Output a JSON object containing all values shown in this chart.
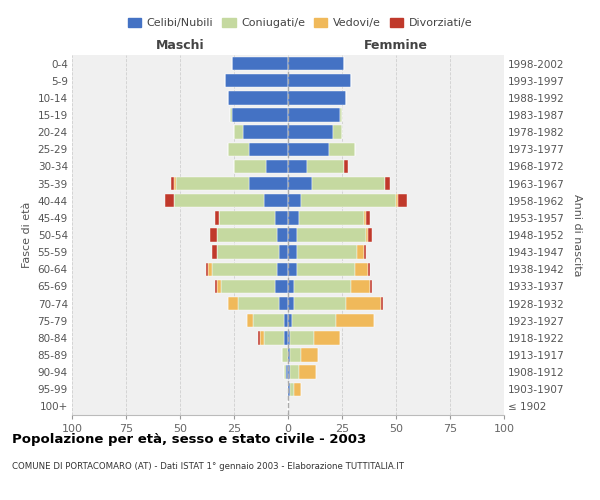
{
  "age_groups": [
    "100+",
    "95-99",
    "90-94",
    "85-89",
    "80-84",
    "75-79",
    "70-74",
    "65-69",
    "60-64",
    "55-59",
    "50-54",
    "45-49",
    "40-44",
    "35-39",
    "30-34",
    "25-29",
    "20-24",
    "15-19",
    "10-14",
    "5-9",
    "0-4"
  ],
  "birth_years": [
    "≤ 1902",
    "1903-1907",
    "1908-1912",
    "1913-1917",
    "1918-1922",
    "1923-1927",
    "1928-1932",
    "1933-1937",
    "1938-1942",
    "1943-1947",
    "1948-1952",
    "1953-1957",
    "1958-1962",
    "1963-1967",
    "1968-1972",
    "1973-1977",
    "1978-1982",
    "1983-1987",
    "1988-1992",
    "1993-1997",
    "1998-2002"
  ],
  "colors": {
    "celibi": "#4472c4",
    "coniugati": "#c5d9a0",
    "vedovi": "#f0b95a",
    "divorziati": "#c0392b",
    "background": "#f0f0f0",
    "grid": "#cccccc"
  },
  "maschi": {
    "celibi": [
      0,
      0,
      1,
      0,
      2,
      2,
      4,
      6,
      5,
      4,
      5,
      6,
      11,
      18,
      10,
      18,
      21,
      26,
      28,
      29,
      26
    ],
    "coniugati": [
      0,
      0,
      1,
      3,
      9,
      14,
      19,
      25,
      30,
      29,
      28,
      26,
      42,
      34,
      15,
      10,
      4,
      1,
      0,
      0,
      0
    ],
    "vedovi": [
      0,
      0,
      0,
      0,
      2,
      3,
      5,
      2,
      2,
      0,
      0,
      0,
      0,
      1,
      0,
      0,
      0,
      0,
      0,
      0,
      0
    ],
    "divorziati": [
      0,
      0,
      0,
      0,
      1,
      0,
      0,
      1,
      1,
      2,
      3,
      2,
      4,
      1,
      0,
      0,
      0,
      0,
      0,
      0,
      0
    ]
  },
  "femmine": {
    "celibi": [
      0,
      1,
      1,
      1,
      1,
      2,
      3,
      3,
      4,
      4,
      4,
      5,
      6,
      11,
      9,
      19,
      21,
      24,
      27,
      29,
      26
    ],
    "coniugati": [
      0,
      2,
      4,
      5,
      11,
      20,
      24,
      26,
      27,
      28,
      32,
      30,
      44,
      34,
      17,
      12,
      4,
      1,
      0,
      0,
      0
    ],
    "vedovi": [
      0,
      3,
      8,
      8,
      12,
      18,
      16,
      9,
      6,
      3,
      1,
      1,
      1,
      0,
      0,
      0,
      0,
      0,
      0,
      0,
      0
    ],
    "divorziati": [
      0,
      0,
      0,
      0,
      0,
      0,
      1,
      1,
      1,
      1,
      2,
      2,
      4,
      2,
      2,
      0,
      0,
      0,
      0,
      0,
      0
    ]
  },
  "xlim": 100,
  "title": "Popolazione per età, sesso e stato civile - 2003",
  "subtitle": "COMUNE DI PORTACOMARO (AT) - Dati ISTAT 1° gennaio 2003 - Elaborazione TUTTITALIA.IT",
  "ylabel_left": "Fasce di età",
  "ylabel_right": "Anni di nascita",
  "legend_labels": [
    "Celibi/Nubili",
    "Coniugati/e",
    "Vedovi/e",
    "Divorziati/e"
  ]
}
